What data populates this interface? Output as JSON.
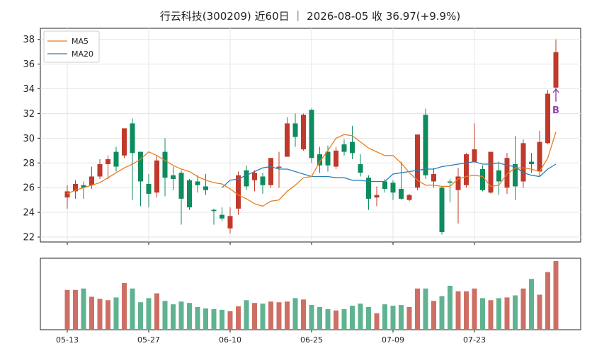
{
  "chart_data": {
    "type": "candlestick",
    "title": "行云科技(300209) 近60日 ｜ 2026-08-05 收 36.97(+9.9%)",
    "x_ticks": [
      "05-13",
      "05-27",
      "06-10",
      "06-25",
      "07-09",
      "07-23"
    ],
    "x_tick_indices": [
      0,
      10,
      20,
      30,
      40,
      50
    ],
    "y_ticks": [
      22,
      24,
      26,
      28,
      30,
      32,
      34,
      36,
      38
    ],
    "ylim": [
      21.6,
      38.9
    ],
    "grid": true,
    "legend": {
      "placement": "top-left",
      "entries": [
        "MA5",
        "MA20"
      ]
    },
    "colors": {
      "up": "#c0392b",
      "down": "#0d8c5e",
      "ma5": "#e67e22",
      "ma20": "#2980b9",
      "vol_up": "#cd6f64",
      "vol_down": "#5fb391",
      "buy_marker": "#8e44ad"
    },
    "signal": {
      "label": "B",
      "index": 60,
      "price": 34.1
    },
    "candles": [
      [
        25.2,
        25.7,
        26.2,
        24.3
      ],
      [
        25.7,
        26.3,
        26.6,
        25.1
      ],
      [
        26.2,
        26.0,
        26.5,
        25.1
      ],
      [
        26.2,
        26.9,
        27.7,
        25.9
      ],
      [
        26.9,
        27.9,
        28.3,
        26.7
      ],
      [
        27.9,
        28.3,
        28.6,
        26.7
      ],
      [
        28.9,
        27.7,
        29.3,
        27.3
      ],
      [
        28.6,
        30.8,
        30.8,
        28.4
      ],
      [
        31.2,
        28.8,
        31.6,
        25.0
      ],
      [
        28.9,
        26.5,
        28.9,
        24.5
      ],
      [
        26.3,
        25.5,
        27.1,
        24.4
      ],
      [
        25.6,
        28.2,
        28.6,
        25.2
      ],
      [
        28.9,
        26.8,
        30.0,
        25.3
      ],
      [
        27.0,
        26.7,
        27.7,
        25.8
      ],
      [
        27.2,
        25.1,
        27.4,
        23.0
      ],
      [
        26.6,
        24.4,
        26.7,
        24.2
      ],
      [
        26.5,
        26.2,
        27.0,
        25.6
      ],
      [
        26.1,
        25.8,
        27.1,
        25.4
      ],
      [
        24.2,
        24.1,
        24.3,
        23.0
      ],
      [
        23.8,
        23.5,
        24.4,
        23.3
      ],
      [
        22.7,
        23.7,
        24.4,
        22.3
      ],
      [
        24.3,
        27.0,
        27.3,
        23.8
      ],
      [
        27.4,
        26.1,
        27.8,
        25.8
      ],
      [
        26.6,
        27.2,
        27.4,
        25.7
      ],
      [
        26.9,
        26.2,
        27.2,
        25.5
      ],
      [
        26.2,
        28.4,
        28.4,
        26.0
      ],
      [
        27.6,
        27.7,
        28.9,
        26.0
      ],
      [
        28.5,
        31.2,
        31.7,
        28.5
      ],
      [
        31.2,
        30.1,
        32.0,
        29.3
      ],
      [
        29.1,
        31.9,
        32.0,
        29.0
      ],
      [
        32.3,
        28.4,
        32.4,
        28.0
      ],
      [
        28.7,
        27.8,
        29.3,
        27.2
      ],
      [
        28.9,
        27.8,
        29.4,
        27.3
      ],
      [
        27.7,
        29.0,
        29.3,
        27.5
      ],
      [
        29.5,
        28.9,
        29.9,
        28.6
      ],
      [
        29.7,
        28.8,
        31.0,
        28.3
      ],
      [
        27.9,
        27.2,
        28.7,
        26.9
      ],
      [
        26.8,
        25.1,
        27.0,
        24.2
      ],
      [
        25.2,
        25.4,
        26.1,
        24.5
      ],
      [
        26.5,
        25.9,
        26.7,
        25.6
      ],
      [
        26.4,
        25.6,
        26.6,
        25.0
      ],
      [
        25.9,
        25.1,
        28.1,
        25.0
      ],
      [
        25.0,
        25.4,
        25.5,
        24.9
      ],
      [
        26.0,
        30.3,
        30.3,
        25.8
      ],
      [
        31.9,
        27.0,
        32.4,
        26.7
      ],
      [
        26.5,
        27.1,
        27.6,
        26.0
      ],
      [
        26.0,
        22.4,
        26.1,
        22.2
      ],
      [
        26.5,
        26.4,
        26.7,
        24.8
      ],
      [
        25.8,
        26.9,
        27.6,
        23.1
      ],
      [
        26.2,
        28.7,
        28.8,
        26.0
      ],
      [
        28.1,
        29.1,
        31.2,
        28.0
      ],
      [
        27.5,
        25.8,
        27.8,
        25.7
      ],
      [
        25.6,
        28.9,
        28.9,
        25.5
      ],
      [
        27.4,
        26.5,
        28.1,
        25.4
      ],
      [
        26.0,
        28.4,
        28.8,
        25.5
      ],
      [
        27.9,
        26.1,
        30.2,
        25.0
      ],
      [
        26.5,
        29.6,
        29.9,
        26.0
      ],
      [
        28.1,
        27.9,
        28.8,
        27.2
      ],
      [
        27.3,
        29.7,
        30.6,
        26.9
      ],
      [
        29.6,
        33.6,
        33.9,
        29.5
      ],
      [
        34.1,
        36.97,
        38.0,
        34.0
      ]
    ],
    "ma5": [
      25.5,
      25.8,
      26.0,
      26.2,
      26.4,
      26.8,
      27.2,
      27.6,
      27.9,
      28.3,
      28.9,
      28.6,
      28.2,
      27.8,
      27.5,
      27.3,
      26.9,
      26.6,
      26.4,
      26.3,
      25.9,
      25.4,
      25.1,
      24.7,
      24.5,
      24.9,
      25.0,
      25.7,
      26.2,
      26.8,
      26.9,
      28.1,
      29.0,
      30.0,
      30.3,
      30.2,
      29.7,
      29.2,
      28.9,
      28.6,
      28.6,
      28.0,
      27.2,
      26.6,
      26.2,
      26.2,
      26.1,
      26.1,
      26.7,
      26.9,
      27.0,
      26.9,
      26.1,
      26.2,
      27.1,
      27.6,
      27.6,
      27.5,
      27.3,
      28.4,
      30.5
    ],
    "ma20": [
      null,
      null,
      null,
      null,
      null,
      null,
      null,
      null,
      null,
      null,
      null,
      null,
      null,
      null,
      null,
      null,
      null,
      null,
      null,
      26.0,
      26.6,
      26.7,
      27.0,
      27.3,
      27.6,
      27.7,
      27.5,
      27.5,
      27.3,
      27.1,
      26.9,
      26.9,
      26.9,
      26.8,
      26.8,
      26.6,
      26.6,
      26.5,
      26.5,
      26.5,
      27.1,
      27.2,
      27.3,
      27.4,
      27.5,
      27.5,
      27.7,
      27.8,
      27.9,
      28.0,
      28.1,
      27.9,
      27.9,
      28.0,
      27.8,
      27.7,
      27.2,
      27.0,
      26.9,
      27.5,
      27.9
    ],
    "volume": [
      58,
      58,
      60,
      48,
      45,
      43,
      47,
      68,
      60,
      40,
      46,
      53,
      42,
      37,
      41,
      39,
      33,
      31,
      30,
      29,
      27,
      34,
      43,
      39,
      38,
      41,
      40,
      41,
      46,
      44,
      36,
      33,
      30,
      28,
      30,
      35,
      38,
      33,
      24,
      37,
      35,
      36,
      33,
      60,
      60,
      42,
      49,
      64,
      56,
      56,
      60,
      46,
      43,
      46,
      47,
      50,
      60,
      74,
      51,
      84,
      100
    ]
  }
}
